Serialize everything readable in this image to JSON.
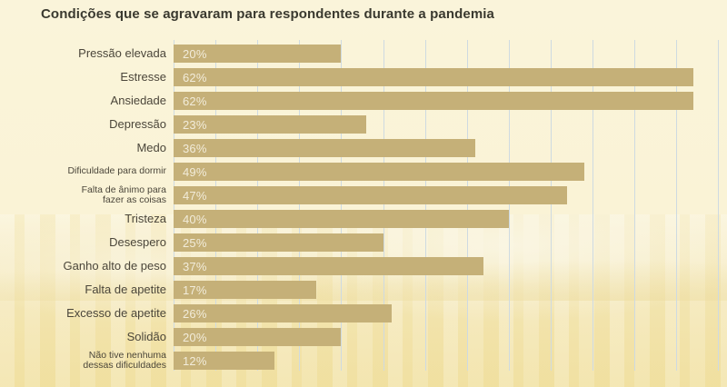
{
  "title": "Condições que se agravaram para respondentes durante a pandemia",
  "colors": {
    "background": "#faf3d6",
    "bar": "#c5b078",
    "gridline": "#cedae1",
    "title_text": "#3a392f",
    "label_text": "#4b463a",
    "value_text": "#f2ecda"
  },
  "chart_data": {
    "type": "bar",
    "orientation": "horizontal",
    "title": "Condições que se agravaram para respondentes durante a pandemia",
    "unit": "%",
    "categories": [
      "Pressão elevada",
      "Estresse",
      "Ansiedade",
      "Depressão",
      "Medo",
      "Dificuldade para dormir",
      "Falta de ânimo para fazer as coisas",
      "Tristeza",
      "Desespero",
      "Ganho alto de peso",
      "Falta de apetite",
      "Excesso de apetite",
      "Solidão",
      "Não tive nenhuma dessas dificuldades"
    ],
    "display_labels": [
      "Pressão elevada",
      "Estresse",
      "Ansiedade",
      "Depressão",
      "Medo",
      "Dificuldade para dormir",
      "Falta de ânimo para\nfazer as coisas",
      "Tristeza",
      "Desespero",
      "Ganho alto de peso",
      "Falta de apetite",
      "Excesso de apetite",
      "Solidão",
      "Não tive nenhuma\ndessas dificuldades"
    ],
    "small_label_indices": [
      5,
      6,
      13
    ],
    "values": [
      20,
      62,
      62,
      23,
      36,
      49,
      47,
      40,
      25,
      37,
      17,
      26,
      20,
      12
    ],
    "value_labels": [
      "20%",
      "62%",
      "62%",
      "23%",
      "36%",
      "49%",
      "47%",
      "40%",
      "25%",
      "37%",
      "17%",
      "26%",
      "20%",
      "12%"
    ],
    "xlim": [
      0,
      65
    ],
    "gridline_step_percent": 5,
    "grid": "vertical-lines-behind-bars",
    "legend": "none",
    "value_label_position": "inside-left"
  }
}
